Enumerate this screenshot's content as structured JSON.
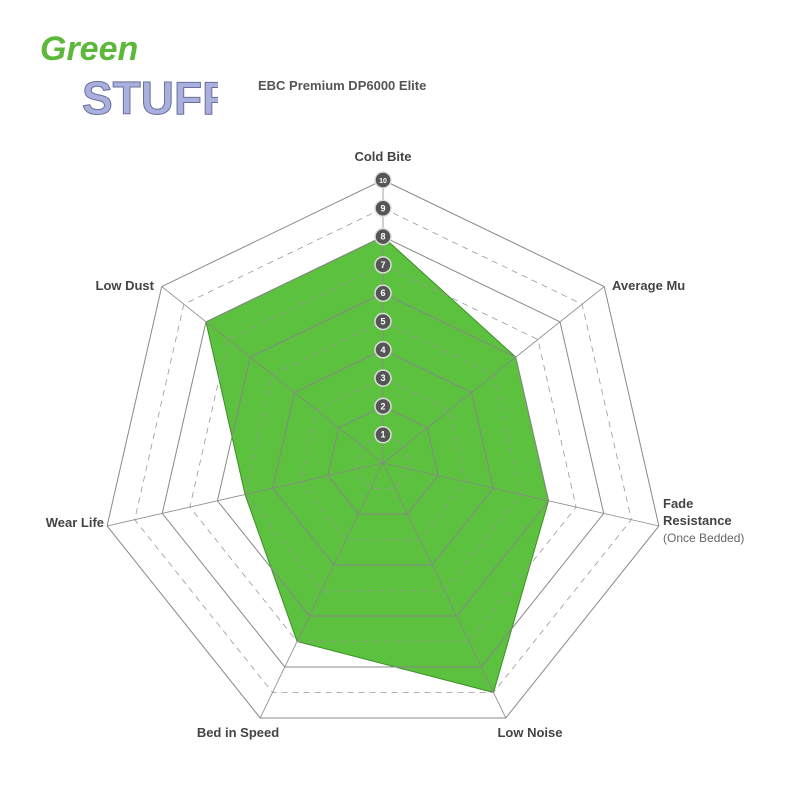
{
  "logo": {
    "line1": "Green",
    "line2": "STUFF"
  },
  "chart_data": {
    "type": "radar",
    "title": "EBC Premium DP6000 Elite",
    "axes": [
      "Cold Bite",
      "Average Mu",
      "Fade Resistance",
      "Low Noise",
      "Bed in Speed",
      "Wear Life",
      "Low Dust"
    ],
    "axis_sublabels": {
      "Fade Resistance": "(Once Bedded)"
    },
    "values": [
      8,
      6,
      6,
      9,
      7,
      5,
      8
    ],
    "scale_ticks": [
      "1",
      "2",
      "3",
      "4",
      "5",
      "6",
      "7",
      "8",
      "9",
      "10"
    ],
    "range": [
      0,
      10
    ],
    "fill_color": "#5cc13f",
    "grid": true
  }
}
